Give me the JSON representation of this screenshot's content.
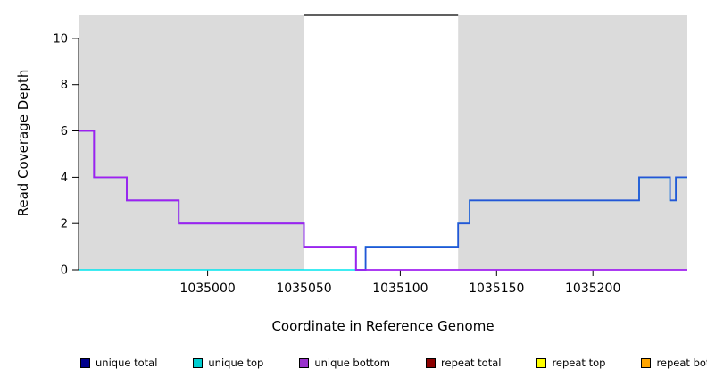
{
  "chart_data": {
    "type": "line",
    "subtype": "step-coverage-plot",
    "title": "",
    "xlabel": "Coordinate in Reference Genome",
    "ylabel": "Read Coverage Depth",
    "xlim": [
      1034933,
      1035249
    ],
    "ylim": [
      0,
      11
    ],
    "xticks": [
      1035000,
      1035050,
      1035100,
      1035150,
      1035200
    ],
    "yticks": [
      0,
      2,
      4,
      6,
      8,
      10
    ],
    "grid": false,
    "legend_position": "bottom",
    "background_regions": [
      {
        "label": "unique-region-left",
        "x0": 1034933,
        "x1": 1035050,
        "color": "#DBDBDB"
      },
      {
        "label": "repeat-region",
        "x0": 1035050,
        "x1": 1035130,
        "color": "#FFFFFF"
      },
      {
        "label": "unique-region-right",
        "x0": 1035130,
        "x1": 1035249,
        "color": "#DBDBDB"
      }
    ],
    "series": [
      {
        "name": "unique top",
        "color": "#00E5EE",
        "width": 1.6,
        "steps": [
          [
            1034933,
            0
          ],
          [
            1035082,
            1
          ],
          [
            1035130,
            2
          ],
          [
            1035136,
            3
          ],
          [
            1035224,
            4
          ],
          [
            1035240,
            3
          ],
          [
            1035243,
            4
          ]
        ]
      },
      {
        "name": "unique total",
        "color": "#2456D6",
        "width": 1.8,
        "steps": [
          [
            1034933,
            6
          ],
          [
            1034941,
            4
          ],
          [
            1034958,
            3
          ],
          [
            1034985,
            2
          ],
          [
            1035050,
            1
          ],
          [
            1035077,
            0
          ],
          [
            1035082,
            1
          ],
          [
            1035130,
            2
          ],
          [
            1035136,
            3
          ],
          [
            1035224,
            4
          ],
          [
            1035240,
            3
          ],
          [
            1035243,
            4
          ]
        ]
      },
      {
        "name": "unique bottom",
        "color": "#A020F0",
        "width": 1.8,
        "steps": [
          [
            1034933,
            6
          ],
          [
            1034941,
            4
          ],
          [
            1034958,
            3
          ],
          [
            1034985,
            2
          ],
          [
            1035050,
            1
          ],
          [
            1035077,
            0
          ]
        ]
      },
      {
        "name": "repeat region top line",
        "color": "#000000",
        "width": 1.2,
        "steps": [
          [
            1035050,
            11
          ]
        ],
        "xend": 1035130
      }
    ],
    "legend_items": [
      {
        "label": "unique total",
        "color": "#00008B"
      },
      {
        "label": "unique top",
        "color": "#00CED1"
      },
      {
        "label": "unique bottom",
        "color": "#9932CC"
      },
      {
        "label": "repeat total",
        "color": "#8B0000"
      },
      {
        "label": "repeat top",
        "color": "#FFFF00"
      },
      {
        "label": "repeat bottom",
        "color": "#FFA500"
      }
    ]
  }
}
